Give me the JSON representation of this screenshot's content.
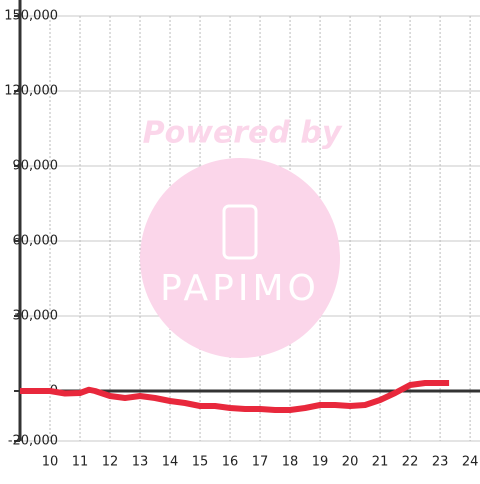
{
  "chart_data": {
    "type": "line",
    "watermark": {
      "top": "Powered by",
      "logo": "PAPIMO"
    },
    "x": [
      9,
      10,
      10.5,
      11,
      11.3,
      11.5,
      12,
      12.5,
      13,
      13.5,
      14,
      14.5,
      15,
      15.5,
      16,
      16.5,
      17,
      17.5,
      18,
      18.5,
      19,
      19.5,
      20,
      20.5,
      21,
      21.5,
      22,
      22.5,
      23,
      23.3
    ],
    "series": [
      {
        "color": "#e8283c",
        "values": [
          0,
          0,
          -1000,
          -800,
          500,
          0,
          -2000,
          -2800,
          -2000,
          -2800,
          -4000,
          -4800,
          -6000,
          -6000,
          -6800,
          -7200,
          -7200,
          -7600,
          -7600,
          -6800,
          -5600,
          -5600,
          -6000,
          -5600,
          -3600,
          -800,
          2400,
          3200,
          3200,
          3200
        ]
      }
    ],
    "xlim": [
      9,
      24.33
    ],
    "xticks": [
      10,
      11,
      12,
      13,
      14,
      15,
      16,
      17,
      18,
      19,
      20,
      21,
      22,
      23,
      24
    ],
    "ylim": [
      -20000,
      150000
    ],
    "yticks": [
      {
        "value": -20000,
        "label": "-20,000"
      },
      0,
      {
        "value": 30000,
        "label": "30,000"
      },
      {
        "value": 60000,
        "label": "60,000"
      },
      {
        "value": 90000,
        "label": "90,000"
      },
      {
        "value": 120000,
        "label": "120,000"
      },
      {
        "value": 150000,
        "label": "150,000"
      }
    ],
    "grid": true
  }
}
